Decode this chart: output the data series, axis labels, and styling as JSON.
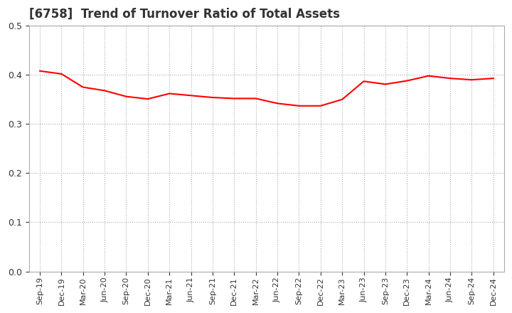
{
  "title": "[6758]  Trend of Turnover Ratio of Total Assets",
  "title_fontsize": 12,
  "title_color": "#333333",
  "line_color": "#FF0000",
  "line_width": 1.5,
  "ylim": [
    0.0,
    0.5
  ],
  "yticks": [
    0.0,
    0.1,
    0.2,
    0.3,
    0.4,
    0.5
  ],
  "background_color": "#FFFFFF",
  "plot_bg_color": "#FFFFFF",
  "grid_color": "#AAAAAA",
  "labels": [
    "Sep-19",
    "Dec-19",
    "Mar-20",
    "Jun-20",
    "Sep-20",
    "Dec-20",
    "Mar-21",
    "Jun-21",
    "Sep-21",
    "Dec-21",
    "Mar-22",
    "Jun-22",
    "Sep-22",
    "Dec-22",
    "Mar-23",
    "Jun-23",
    "Sep-23",
    "Dec-23",
    "Mar-24",
    "Jun-24",
    "Sep-24",
    "Dec-24"
  ],
  "values": [
    0.408,
    0.402,
    0.375,
    0.368,
    0.356,
    0.351,
    0.362,
    0.358,
    0.354,
    0.352,
    0.352,
    0.342,
    0.337,
    0.337,
    0.35,
    0.387,
    0.381,
    0.388,
    0.398,
    0.393,
    0.39,
    0.393
  ],
  "spine_color": "#AAAAAA",
  "tick_label_color": "#333333",
  "ytick_fontsize": 9,
  "xtick_fontsize": 8
}
